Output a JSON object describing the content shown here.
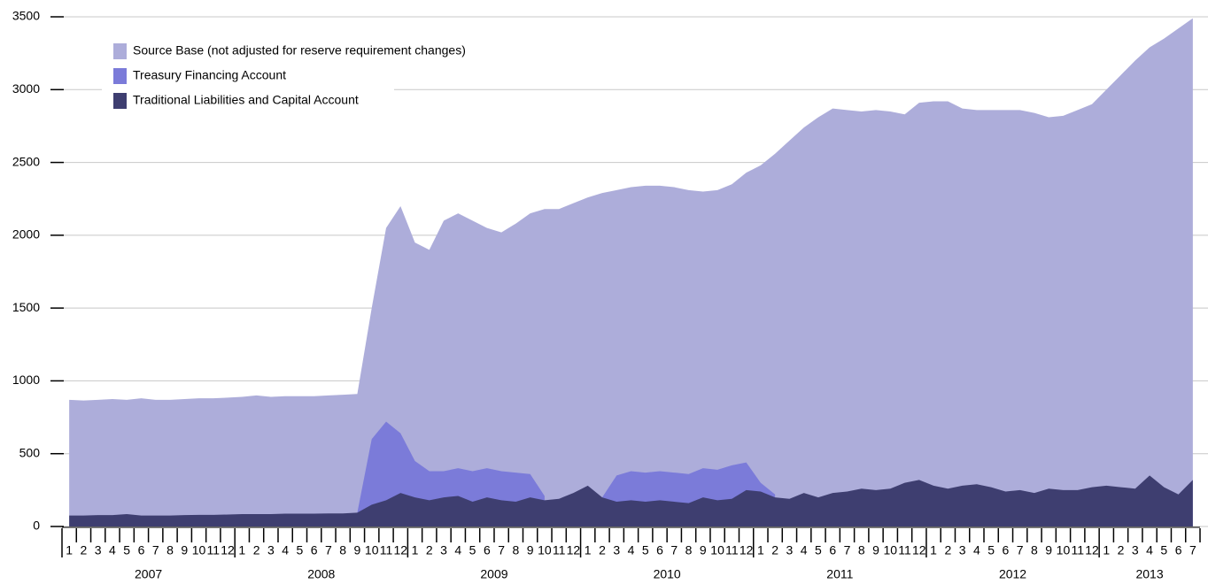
{
  "chart_data": {
    "type": "area",
    "categories": [
      "1",
      "2",
      "3",
      "4",
      "5",
      "6",
      "7",
      "8",
      "9",
      "10",
      "11",
      "12",
      "1",
      "2",
      "3",
      "4",
      "5",
      "6",
      "7",
      "8",
      "9",
      "10",
      "11",
      "12",
      "1",
      "2",
      "3",
      "4",
      "5",
      "6",
      "7",
      "8",
      "9",
      "10",
      "11",
      "12",
      "1",
      "2",
      "3",
      "4",
      "5",
      "6",
      "7",
      "8",
      "9",
      "10",
      "11",
      "12",
      "1",
      "2",
      "3",
      "4",
      "5",
      "6",
      "7",
      "8",
      "9",
      "10",
      "11",
      "12",
      "1",
      "2",
      "3",
      "4",
      "5",
      "6",
      "7",
      "8",
      "9",
      "10",
      "11",
      "12",
      "1",
      "2",
      "3",
      "4",
      "5",
      "6",
      "7"
    ],
    "years": [
      "2007",
      "2008",
      "2009",
      "2010",
      "2011",
      "2012",
      "2013"
    ],
    "ylim": [
      0,
      3500
    ],
    "yticks": [
      0,
      500,
      1000,
      1500,
      2000,
      2500,
      3000,
      3500
    ],
    "grid": true,
    "legend": "upper left",
    "series": [
      {
        "name": "Source Base (not adjusted for reserve requirement changes)",
        "color": "#adadda",
        "values": [
          870,
          865,
          870,
          875,
          870,
          880,
          870,
          870,
          875,
          880,
          880,
          885,
          890,
          900,
          890,
          895,
          895,
          895,
          900,
          905,
          910,
          1500,
          2050,
          2200,
          1950,
          1900,
          2100,
          2150,
          2100,
          2050,
          2020,
          2080,
          2150,
          2180,
          2180,
          2220,
          2260,
          2290,
          2310,
          2330,
          2340,
          2340,
          2330,
          2310,
          2300,
          2310,
          2350,
          2430,
          2480,
          2560,
          2650,
          2740,
          2810,
          2870,
          2860,
          2850,
          2860,
          2850,
          2830,
          2910,
          2920,
          2920,
          2870,
          2860,
          2860,
          2860,
          2860,
          2840,
          2810,
          2820,
          2860,
          2900,
          3000,
          3100,
          3200,
          3290,
          3350,
          3420,
          3490
        ]
      },
      {
        "name": "Treasury Financing Account",
        "color": "#7b7bd9",
        "values": [
          null,
          null,
          null,
          null,
          null,
          null,
          null,
          null,
          null,
          null,
          null,
          null,
          null,
          null,
          null,
          null,
          null,
          null,
          null,
          null,
          95,
          600,
          720,
          640,
          450,
          380,
          380,
          400,
          380,
          400,
          380,
          370,
          360,
          210,
          null,
          null,
          null,
          200,
          350,
          380,
          370,
          380,
          370,
          360,
          400,
          390,
          420,
          440,
          300,
          220,
          null,
          null,
          null,
          null,
          null,
          null,
          null,
          null,
          null,
          null,
          null,
          null,
          null,
          null,
          null,
          null,
          null,
          null,
          null,
          null,
          null,
          null,
          null,
          null,
          null,
          null,
          null,
          null,
          null
        ]
      },
      {
        "name": "Traditional Liabilities and Capital Account",
        "color": "#3e3e70",
        "values": [
          75,
          75,
          78,
          78,
          85,
          75,
          75,
          75,
          78,
          80,
          80,
          82,
          85,
          85,
          85,
          88,
          88,
          88,
          90,
          90,
          95,
          150,
          180,
          230,
          200,
          180,
          200,
          210,
          170,
          200,
          180,
          170,
          200,
          180,
          190,
          230,
          280,
          200,
          170,
          180,
          170,
          180,
          170,
          160,
          200,
          180,
          190,
          250,
          240,
          200,
          190,
          230,
          200,
          230,
          240,
          260,
          250,
          260,
          300,
          320,
          280,
          260,
          280,
          290,
          270,
          240,
          250,
          230,
          260,
          250,
          250,
          270,
          280,
          270,
          260,
          350,
          270,
          220,
          320
        ]
      }
    ]
  }
}
